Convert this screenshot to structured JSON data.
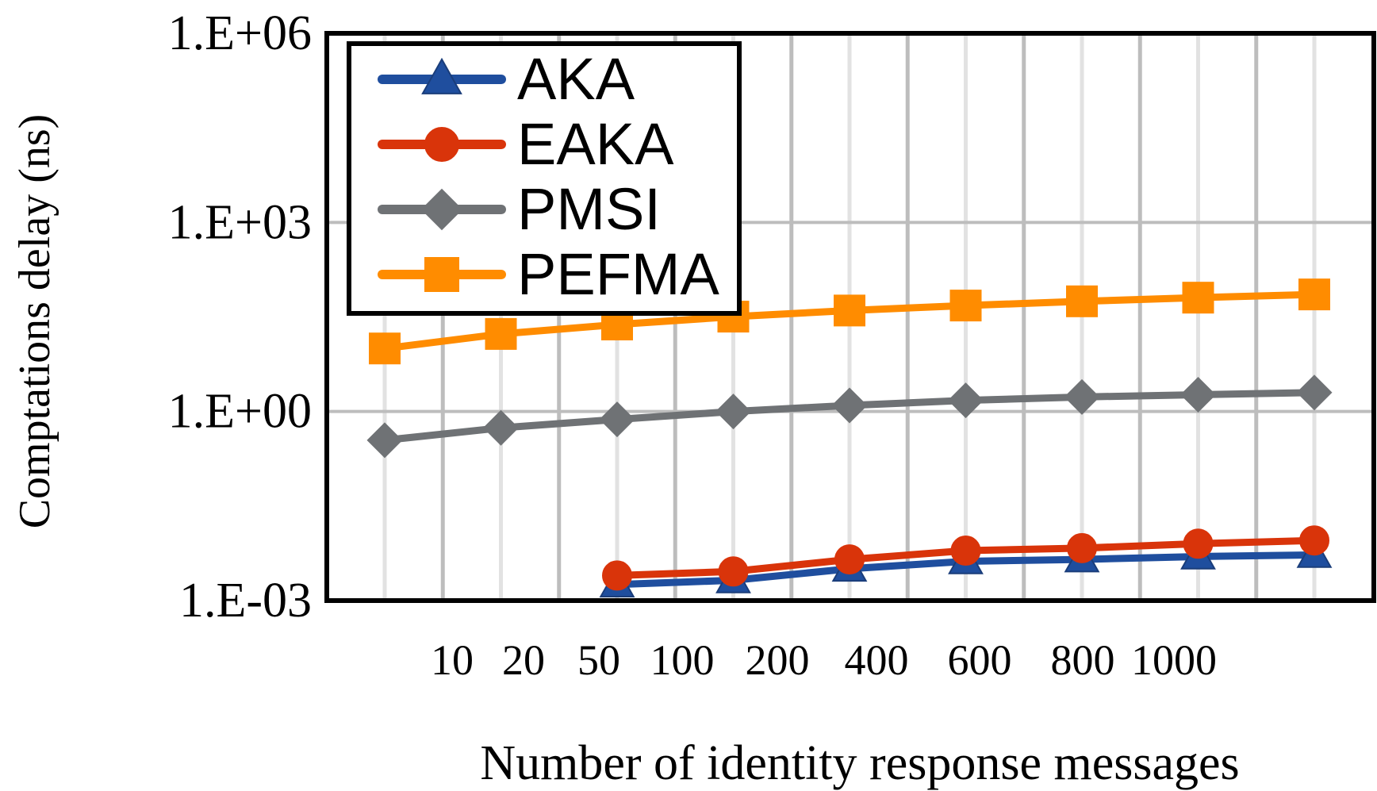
{
  "chart_data": {
    "type": "line",
    "title": "",
    "xlabel": "Number of identity response messages",
    "ylabel": "Comptations delay (ns)",
    "y_scale": "log10",
    "ylim": [
      0.001,
      1000000
    ],
    "y_ticks": [
      {
        "value": 0.001,
        "label": "1.E-03"
      },
      {
        "value": 1,
        "label": "1.E+00"
      },
      {
        "value": 1000,
        "label": "1.E+03"
      },
      {
        "value": 1000000,
        "label": "1.E+06"
      }
    ],
    "x_tick_labels": [
      "10",
      "20",
      "50",
      "100",
      "200",
      "400",
      "600",
      "800",
      "1000"
    ],
    "x_points": 9,
    "legend_position": "top-left",
    "grid": true,
    "series": [
      {
        "name": "AKA",
        "color": "#1f4e9e",
        "marker": "triangle",
        "values": [
          null,
          null,
          0.0018,
          0.0021,
          0.0032,
          0.0042,
          0.0045,
          0.005,
          0.0053
        ]
      },
      {
        "name": "EAKA",
        "color": "#d9340a",
        "marker": "circle",
        "values": [
          null,
          null,
          0.0025,
          0.0029,
          0.0045,
          0.0062,
          0.0068,
          0.008,
          0.009
        ]
      },
      {
        "name": "PMSI",
        "color": "#6f7275",
        "marker": "diamond",
        "values": [
          0.35,
          0.55,
          0.75,
          1.0,
          1.25,
          1.5,
          1.7,
          1.85,
          2.0
        ]
      },
      {
        "name": "PEFMA",
        "color": "#ff8c00",
        "marker": "square",
        "values": [
          10,
          17,
          24,
          32,
          40,
          48,
          56,
          64,
          72
        ]
      }
    ]
  }
}
